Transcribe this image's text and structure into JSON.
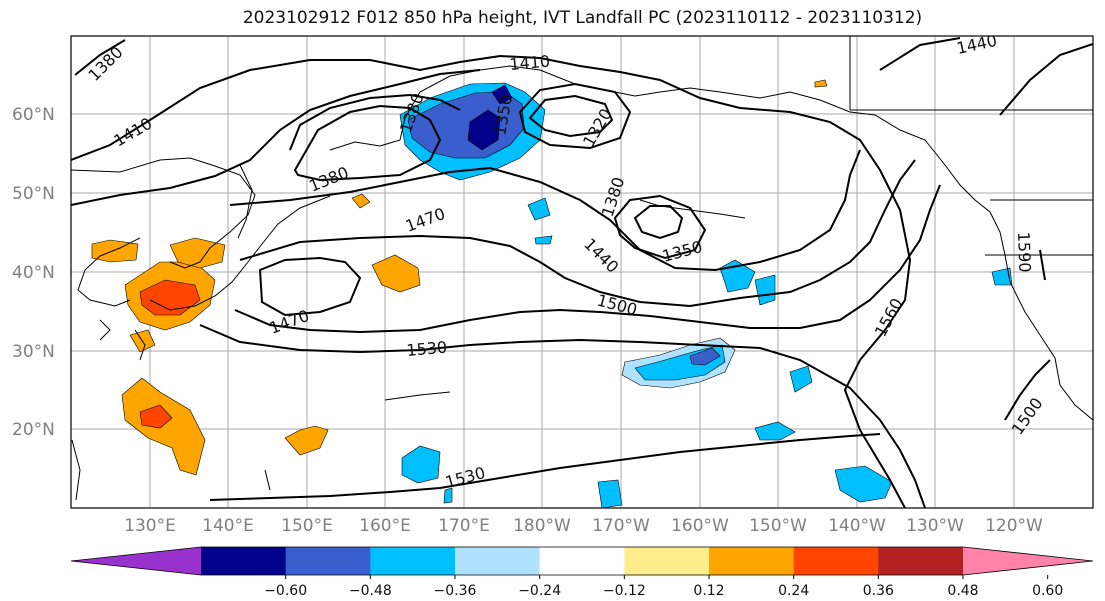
{
  "title": "2023102912 F012 850 hPa height, IVT Landfall PC (2023110112 - 2023110312)",
  "map": {
    "region": "North Pacific",
    "lat_labels": [
      "60°N",
      "50°N",
      "40°N",
      "30°N",
      "20°N"
    ],
    "lon_labels": [
      "130°E",
      "140°E",
      "150°E",
      "160°E",
      "170°E",
      "180°W",
      "170°W",
      "160°W",
      "150°W",
      "140°W",
      "130°W",
      "120°W"
    ],
    "contour_labels": [
      "1380",
      "1410",
      "1380",
      "1350",
      "1320",
      "1380",
      "1470",
      "1380",
      "1350",
      "1440",
      "1470",
      "1500",
      "1530",
      "1560",
      "1590",
      "1500",
      "1530",
      "1440"
    ]
  },
  "colorbar": {
    "ticks": [
      "−0.60",
      "−0.48",
      "−0.36",
      "−0.24",
      "−0.12",
      "0.12",
      "0.24",
      "0.36",
      "0.48",
      "0.60"
    ],
    "colors": [
      "#9932CC",
      "#00008B",
      "#3A5FCD",
      "#00BFFF",
      "#B0E2FF",
      "#FFFFFF",
      "#FFEC8B",
      "#FFA500",
      "#FF4500",
      "#B22222",
      "#FF82AB"
    ]
  }
}
